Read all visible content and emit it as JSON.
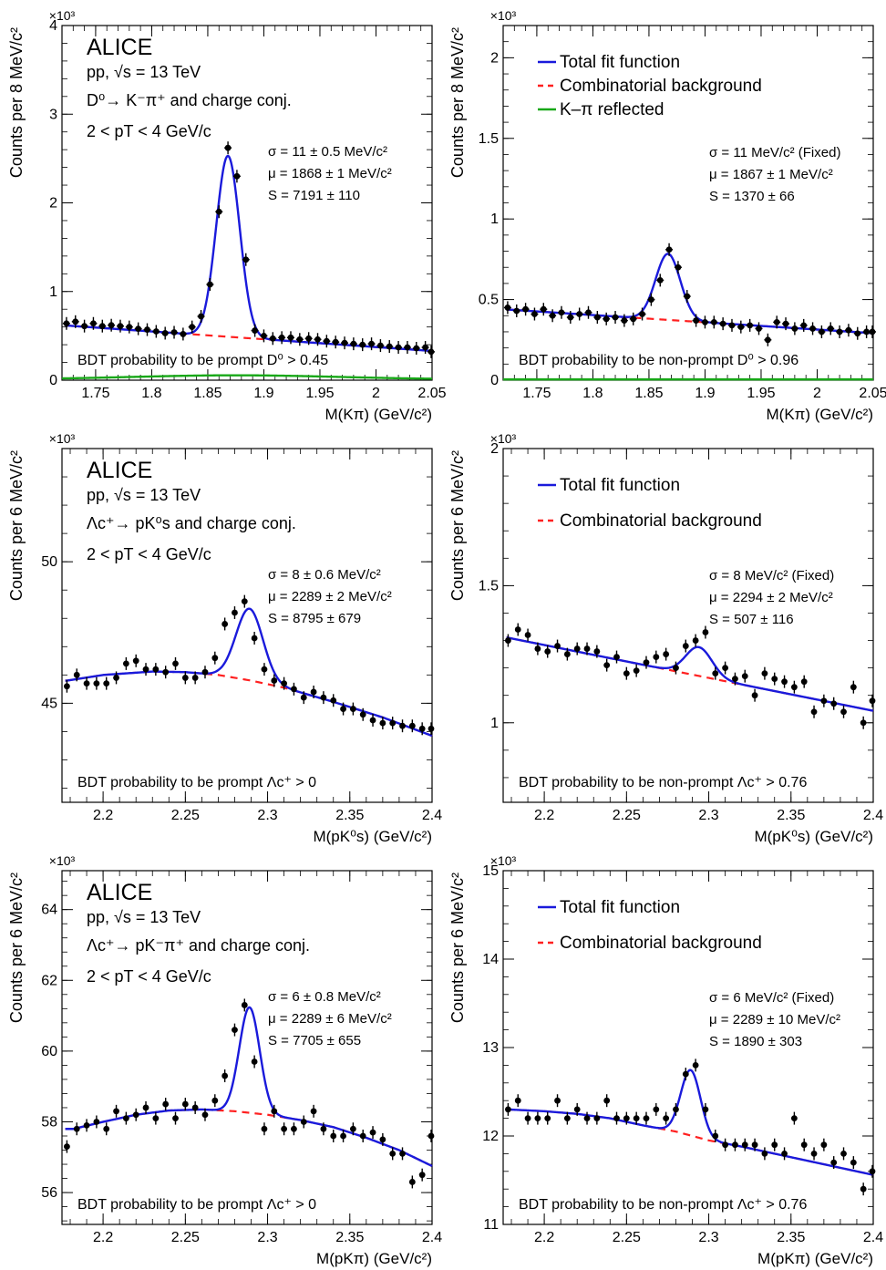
{
  "chart_data": [
    {
      "type": "scatter",
      "panel": "A",
      "xlabel": "M(Kπ) (GeV/c²)",
      "ylabel": "Counts per 8 MeV/c²",
      "x_ticks": [
        "1.75",
        "1.8",
        "1.85",
        "1.9",
        "1.95",
        "2",
        "2.05"
      ],
      "x_tick_values": [
        1.75,
        1.8,
        1.85,
        1.9,
        1.95,
        2.0,
        2.05
      ],
      "y_ticks": [
        "0",
        "1",
        "2",
        "3",
        "4"
      ],
      "y_tick_values": [
        0,
        1,
        2,
        3,
        4
      ],
      "y_multiplier": "×10³",
      "xlim": [
        1.72,
        2.05
      ],
      "ylim": [
        0,
        4
      ],
      "experiment": "ALICE",
      "header": [
        "pp, √s = 13 TeV",
        "D⁰→ K⁻π⁺ and charge conj.",
        "2 < pT < 4 GeV/c"
      ],
      "fit_results": [
        "σ = 11 ± 0.5 MeV/c²",
        "μ = 1868 ± 1 MeV/c²",
        "S = 7191 ± 110"
      ],
      "caption": "BDT probability to be prompt D⁰ > 0.45",
      "series": [
        {
          "name": "data",
          "x": [
            1.724,
            1.732,
            1.74,
            1.748,
            1.756,
            1.764,
            1.772,
            1.78,
            1.788,
            1.796,
            1.804,
            1.812,
            1.82,
            1.828,
            1.836,
            1.844,
            1.852,
            1.86,
            1.868,
            1.876,
            1.884,
            1.892,
            1.9,
            1.908,
            1.916,
            1.924,
            1.932,
            1.94,
            1.948,
            1.956,
            1.964,
            1.972,
            1.98,
            1.988,
            1.996,
            2.004,
            2.012,
            2.02,
            2.028,
            2.036,
            2.044,
            2.052
          ],
          "y": [
            0.64,
            0.66,
            0.61,
            0.64,
            0.61,
            0.62,
            0.61,
            0.6,
            0.58,
            0.57,
            0.55,
            0.53,
            0.54,
            0.52,
            0.6,
            0.72,
            1.08,
            1.9,
            2.62,
            2.3,
            1.36,
            0.56,
            0.5,
            0.47,
            0.48,
            0.48,
            0.46,
            0.47,
            0.46,
            0.44,
            0.43,
            0.42,
            0.41,
            0.4,
            0.41,
            0.39,
            0.38,
            0.37,
            0.37,
            0.36,
            0.37,
            0.32
          ]
        },
        {
          "name": "Total fit function",
          "color": "#1a1adb",
          "mu": 1.868,
          "sigma": 0.0105,
          "amplitude": 2.04,
          "bkg_a": 0.62,
          "bkg_b": -0.88,
          "bkg_x0": 1.72
        },
        {
          "name": "Combinatorial background",
          "color": "#ff2020",
          "style": "dashed",
          "bkg_a": 0.62,
          "bkg_b": -0.88,
          "bkg_x0": 1.72
        },
        {
          "name": "K–π reflected",
          "color": "#18a818",
          "mu": 1.875,
          "sigma": 0.09,
          "amplitude": 0.045,
          "base": 0.01
        }
      ]
    },
    {
      "type": "scatter",
      "panel": "B",
      "xlabel": "M(Kπ) (GeV/c²)",
      "ylabel": "Counts per 8 MeV/c²",
      "x_ticks": [
        "1.75",
        "1.8",
        "1.85",
        "1.9",
        "1.95",
        "2",
        "2.05"
      ],
      "x_tick_values": [
        1.75,
        1.8,
        1.85,
        1.9,
        1.95,
        2.0,
        2.05
      ],
      "y_ticks": [
        "0",
        "0.5",
        "1",
        "1.5",
        "2"
      ],
      "y_tick_values": [
        0,
        0.5,
        1,
        1.5,
        2
      ],
      "y_multiplier": "×10³",
      "xlim": [
        1.72,
        2.05
      ],
      "ylim": [
        0,
        2.2
      ],
      "legend": [
        "Total fit function",
        "Combinatorial background",
        "K–π reflected"
      ],
      "fit_results": [
        "σ = 11 MeV/c² (Fixed)",
        "μ = 1867 ± 1 MeV/c²",
        "S = 1370 ± 66"
      ],
      "caption": "BDT probability to be non-prompt D⁰ > 0.96",
      "series": [
        {
          "name": "data",
          "x": [
            1.724,
            1.732,
            1.74,
            1.748,
            1.756,
            1.764,
            1.772,
            1.78,
            1.788,
            1.796,
            1.804,
            1.812,
            1.82,
            1.828,
            1.836,
            1.844,
            1.852,
            1.86,
            1.868,
            1.876,
            1.884,
            1.892,
            1.9,
            1.908,
            1.916,
            1.924,
            1.932,
            1.94,
            1.948,
            1.956,
            1.964,
            1.972,
            1.98,
            1.988,
            1.996,
            2.004,
            2.012,
            2.02,
            2.028,
            2.036,
            2.044,
            2.052
          ],
          "y": [
            0.45,
            0.43,
            0.44,
            0.41,
            0.44,
            0.4,
            0.42,
            0.39,
            0.41,
            0.42,
            0.39,
            0.38,
            0.39,
            0.37,
            0.38,
            0.41,
            0.5,
            0.62,
            0.81,
            0.7,
            0.52,
            0.37,
            0.36,
            0.36,
            0.35,
            0.34,
            0.33,
            0.34,
            0.32,
            0.25,
            0.36,
            0.35,
            0.32,
            0.34,
            0.32,
            0.3,
            0.32,
            0.3,
            0.31,
            0.29,
            0.3,
            0.3
          ]
        },
        {
          "name": "Total fit function",
          "color": "#1a1adb",
          "mu": 1.867,
          "sigma": 0.011,
          "amplitude": 0.41,
          "bkg_a": 0.44,
          "bkg_b": -0.45,
          "bkg_x0": 1.72
        },
        {
          "name": "Combinatorial background",
          "color": "#ff2020",
          "style": "dashed",
          "bkg_a": 0.44,
          "bkg_b": -0.45,
          "bkg_x0": 1.72
        },
        {
          "name": "K–π reflected",
          "color": "#18a818",
          "mu": 1.875,
          "sigma": 0.09,
          "amplitude": 0.0,
          "base": 0.005
        }
      ]
    },
    {
      "type": "scatter",
      "panel": "C",
      "xlabel": "M(pK⁰s) (GeV/c²)",
      "ylabel": "Counts per 6 MeV/c²",
      "x_ticks": [
        "2.2",
        "2.25",
        "2.3",
        "2.35",
        "2.4"
      ],
      "x_tick_values": [
        2.2,
        2.25,
        2.3,
        2.35,
        2.4
      ],
      "y_ticks": [
        "45",
        "50"
      ],
      "y_tick_values": [
        45,
        50
      ],
      "y_multiplier": "×10³",
      "xlim": [
        2.175,
        2.4
      ],
      "ylim": [
        41.5,
        54
      ],
      "experiment": "ALICE",
      "header": [
        "pp, √s = 13 TeV",
        "Λc⁺→ pK⁰s and charge conj.",
        "2 < pT < 4 GeV/c"
      ],
      "fit_results": [
        "σ = 8 ± 0.6 MeV/c²",
        "μ = 2289 ± 2 MeV/c²",
        "S = 8795 ± 679"
      ],
      "caption": "BDT probability to be prompt Λc⁺ > 0",
      "series": [
        {
          "name": "data",
          "x": [
            2.178,
            2.184,
            2.19,
            2.196,
            2.202,
            2.208,
            2.214,
            2.22,
            2.226,
            2.232,
            2.238,
            2.244,
            2.25,
            2.256,
            2.262,
            2.268,
            2.274,
            2.28,
            2.286,
            2.292,
            2.298,
            2.304,
            2.31,
            2.316,
            2.322,
            2.328,
            2.334,
            2.34,
            2.346,
            2.352,
            2.358,
            2.364,
            2.37,
            2.376,
            2.382,
            2.388,
            2.394,
            2.4
          ],
          "y": [
            45.6,
            46,
            45.7,
            45.7,
            45.7,
            45.9,
            46.4,
            46.5,
            46.2,
            46.2,
            46.1,
            46.4,
            45.9,
            45.9,
            46.1,
            46.6,
            47.8,
            48.2,
            48.6,
            47.3,
            46.2,
            45.8,
            45.7,
            45.5,
            45.2,
            45.4,
            45.2,
            45.1,
            44.8,
            44.8,
            44.6,
            44.4,
            44.3,
            44.3,
            44.2,
            44.2,
            44.1,
            44.1
          ]
        },
        {
          "name": "Total fit function",
          "color": "#1a1adb",
          "mu": 2.289,
          "sigma": 0.0082,
          "amplitude": 2.53
        },
        {
          "name": "Combinatorial background",
          "color": "#ff2020",
          "style": "dashed"
        }
      ],
      "bkg_points": {
        "x": [
          2.178,
          2.2,
          2.23,
          2.25,
          2.27,
          2.29,
          2.31,
          2.34,
          2.37,
          2.4
        ],
        "y": [
          45.8,
          46.0,
          46.12,
          46.1,
          46.0,
          45.8,
          45.55,
          45.05,
          44.5,
          43.85
        ]
      }
    },
    {
      "type": "scatter",
      "panel": "D",
      "xlabel": "M(pK⁰s) (GeV/c²)",
      "ylabel": "Counts per 6 MeV/c²",
      "x_ticks": [
        "2.2",
        "2.25",
        "2.3",
        "2.35",
        "2.4"
      ],
      "x_tick_values": [
        2.2,
        2.25,
        2.3,
        2.35,
        2.4
      ],
      "y_ticks": [
        "1",
        "1.5",
        "2"
      ],
      "y_tick_values": [
        1,
        1.5,
        2
      ],
      "y_multiplier": "×10³",
      "xlim": [
        2.175,
        2.4
      ],
      "ylim": [
        0.71,
        2.0
      ],
      "legend": [
        "Total fit function",
        "Combinatorial background"
      ],
      "fit_results": [
        "σ = 8 MeV/c² (Fixed)",
        "μ = 2294 ± 2 MeV/c²",
        "S = 507 ± 116"
      ],
      "caption": "BDT probability to be non-prompt Λc⁺ > 0.76",
      "series": [
        {
          "name": "data",
          "x": [
            2.178,
            2.184,
            2.19,
            2.196,
            2.202,
            2.208,
            2.214,
            2.22,
            2.226,
            2.232,
            2.238,
            2.244,
            2.25,
            2.256,
            2.262,
            2.268,
            2.274,
            2.28,
            2.286,
            2.292,
            2.298,
            2.304,
            2.31,
            2.316,
            2.322,
            2.328,
            2.334,
            2.34,
            2.346,
            2.352,
            2.358,
            2.364,
            2.37,
            2.376,
            2.382,
            2.388,
            2.394,
            2.4
          ],
          "y": [
            1.3,
            1.34,
            1.32,
            1.27,
            1.26,
            1.28,
            1.25,
            1.27,
            1.27,
            1.26,
            1.21,
            1.24,
            1.18,
            1.19,
            1.22,
            1.24,
            1.25,
            1.2,
            1.28,
            1.3,
            1.33,
            1.18,
            1.2,
            1.16,
            1.17,
            1.1,
            1.18,
            1.16,
            1.15,
            1.13,
            1.15,
            1.04,
            1.08,
            1.07,
            1.04,
            1.13,
            1,
            1.08
          ]
        },
        {
          "name": "Total fit function",
          "color": "#1a1adb",
          "mu": 2.294,
          "sigma": 0.008,
          "amplitude": 0.105,
          "bkg_a": 1.31,
          "bkg_b": -1.2,
          "bkg_x0": 2.178
        },
        {
          "name": "Combinatorial background",
          "color": "#ff2020",
          "style": "dashed",
          "bkg_a": 1.31,
          "bkg_b": -1.2,
          "bkg_x0": 2.178
        }
      ]
    },
    {
      "type": "scatter",
      "panel": "E",
      "xlabel": "M(pKπ) (GeV/c²)",
      "ylabel": "Counts per 6 MeV/c²",
      "x_ticks": [
        "2.2",
        "2.25",
        "2.3",
        "2.35",
        "2.4"
      ],
      "x_tick_values": [
        2.2,
        2.25,
        2.3,
        2.35,
        2.4
      ],
      "y_ticks": [
        "56",
        "58",
        "60",
        "62",
        "64"
      ],
      "y_tick_values": [
        56,
        58,
        60,
        62,
        64
      ],
      "y_multiplier": "×10³",
      "xlim": [
        2.175,
        2.4
      ],
      "ylim": [
        55.1,
        65.1
      ],
      "experiment": "ALICE",
      "header": [
        "pp, √s = 13 TeV",
        "Λc⁺→ pK⁻π⁺ and charge conj.",
        "2 < pT < 4 GeV/c"
      ],
      "fit_results": [
        "σ = 6 ± 0.8 MeV/c²",
        "μ = 2289 ± 6 MeV/c²",
        "S = 7705 ± 655"
      ],
      "caption": "BDT probability to be prompt Λc⁺ > 0",
      "series": [
        {
          "name": "data",
          "x": [
            2.178,
            2.184,
            2.19,
            2.196,
            2.202,
            2.208,
            2.214,
            2.22,
            2.226,
            2.232,
            2.238,
            2.244,
            2.25,
            2.256,
            2.262,
            2.268,
            2.274,
            2.28,
            2.286,
            2.292,
            2.298,
            2.304,
            2.31,
            2.316,
            2.322,
            2.328,
            2.334,
            2.34,
            2.346,
            2.352,
            2.358,
            2.364,
            2.37,
            2.376,
            2.382,
            2.388,
            2.394,
            2.4
          ],
          "y": [
            57.3,
            57.8,
            57.9,
            58,
            57.8,
            58.3,
            58.1,
            58.2,
            58.4,
            58.1,
            58.5,
            58.1,
            58.5,
            58.4,
            58.2,
            58.6,
            59.3,
            60.6,
            61.3,
            59.7,
            57.8,
            58.3,
            57.8,
            57.8,
            58,
            58.3,
            57.8,
            57.6,
            57.6,
            57.8,
            57.6,
            57.7,
            57.5,
            57.1,
            57.1,
            56.3,
            56.5,
            57.6
          ]
        },
        {
          "name": "Total fit function",
          "color": "#1a1adb",
          "mu": 2.289,
          "sigma": 0.0062,
          "amplitude": 2.98
        },
        {
          "name": "Combinatorial background",
          "color": "#ff2020",
          "style": "dashed"
        }
      ],
      "bkg_points": {
        "x": [
          2.182,
          2.2,
          2.22,
          2.24,
          2.26,
          2.28,
          2.3,
          2.32,
          2.34,
          2.36,
          2.38,
          2.4
        ],
        "y": [
          57.8,
          58.0,
          58.2,
          58.32,
          58.35,
          58.3,
          58.2,
          58.05,
          57.85,
          57.55,
          57.2,
          56.75
        ]
      }
    },
    {
      "type": "scatter",
      "panel": "F",
      "xlabel": "M(pKπ) (GeV/c²)",
      "ylabel": "Counts per 6 MeV/c²",
      "x_ticks": [
        "2.2",
        "2.25",
        "2.3",
        "2.35",
        "2.4"
      ],
      "x_tick_values": [
        2.2,
        2.25,
        2.3,
        2.35,
        2.4
      ],
      "y_ticks": [
        "11",
        "12",
        "13",
        "14",
        "15"
      ],
      "y_tick_values": [
        11,
        12,
        13,
        14,
        15
      ],
      "y_multiplier": "×10³",
      "xlim": [
        2.175,
        2.4
      ],
      "ylim": [
        11,
        15
      ],
      "legend": [
        "Total fit function",
        "Combinatorial background"
      ],
      "fit_results": [
        "σ = 6 MeV/c² (Fixed)",
        "μ = 2289 ± 10 MeV/c²",
        "S = 1890 ± 303"
      ],
      "caption": "BDT probability to be non-prompt Λc⁺ > 0.76",
      "series": [
        {
          "name": "data",
          "x": [
            2.178,
            2.184,
            2.19,
            2.196,
            2.202,
            2.208,
            2.214,
            2.22,
            2.226,
            2.232,
            2.238,
            2.244,
            2.25,
            2.256,
            2.262,
            2.268,
            2.274,
            2.28,
            2.286,
            2.292,
            2.298,
            2.304,
            2.31,
            2.316,
            2.322,
            2.328,
            2.334,
            2.34,
            2.346,
            2.352,
            2.358,
            2.364,
            2.37,
            2.376,
            2.382,
            2.388,
            2.394,
            2.4
          ],
          "y": [
            12.3,
            12.4,
            12.2,
            12.2,
            12.2,
            12.4,
            12.2,
            12.3,
            12.2,
            12.2,
            12.4,
            12.2,
            12.2,
            12.2,
            12.2,
            12.3,
            12.2,
            12.3,
            12.7,
            12.8,
            12.3,
            12,
            11.9,
            11.9,
            11.9,
            11.9,
            11.8,
            11.9,
            11.8,
            12.2,
            11.9,
            11.8,
            11.9,
            11.7,
            11.8,
            11.7,
            11.4,
            11.6
          ]
        },
        {
          "name": "Total fit function",
          "color": "#1a1adb",
          "mu": 2.289,
          "sigma": 0.006,
          "amplitude": 0.74
        },
        {
          "name": "Combinatorial background",
          "color": "#ff2020",
          "style": "dashed"
        }
      ],
      "bkg_points": {
        "x": [
          2.178,
          2.2,
          2.22,
          2.24,
          2.26,
          2.28,
          2.3,
          2.32,
          2.34,
          2.36,
          2.38,
          2.4
        ],
        "y": [
          12.3,
          12.28,
          12.25,
          12.2,
          12.12,
          12.05,
          11.95,
          11.88,
          11.8,
          11.72,
          11.64,
          11.56
        ]
      }
    }
  ]
}
